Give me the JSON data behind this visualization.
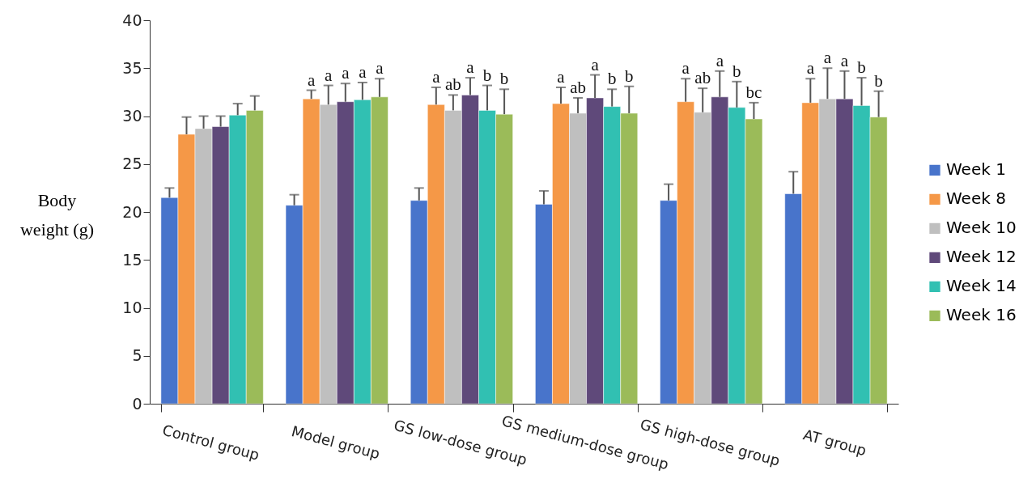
{
  "chart_data": {
    "type": "bar",
    "ylabel": "Body weight (g)",
    "categories": [
      "Control group",
      "Model group",
      "GS low-dose group",
      "GS medium-dose group",
      "GS high-dose group",
      "AT group"
    ],
    "ylim": [
      0,
      40
    ],
    "yticks": [
      0,
      5,
      10,
      15,
      20,
      25,
      30,
      35,
      40
    ],
    "grid": false,
    "legend": "right",
    "series": [
      {
        "name": "Week 1",
        "color": "#4874cb",
        "values": [
          21.5,
          20.7,
          21.2,
          20.8,
          21.2,
          21.9
        ],
        "errors": [
          1.0,
          1.1,
          1.3,
          1.4,
          1.7,
          2.3
        ],
        "value_labels": [
          null,
          null,
          null,
          null,
          null,
          null
        ]
      },
      {
        "name": "Week 8",
        "color": "#f59847",
        "values": [
          28.1,
          31.8,
          31.2,
          31.3,
          31.5,
          31.4
        ],
        "errors": [
          1.8,
          0.9,
          1.8,
          1.7,
          2.4,
          2.5
        ],
        "value_labels": [
          null,
          "a",
          "a",
          "a",
          "a",
          "a"
        ]
      },
      {
        "name": "Week 10",
        "color": "#bfbfbf",
        "values": [
          28.7,
          31.2,
          30.6,
          30.3,
          30.4,
          31.8
        ],
        "errors": [
          1.3,
          2.0,
          1.6,
          1.6,
          2.5,
          3.2
        ],
        "value_labels": [
          null,
          "a",
          "ab",
          "ab",
          "ab",
          "a"
        ]
      },
      {
        "name": "Week 12",
        "color": "#5f497a",
        "values": [
          28.9,
          31.5,
          32.2,
          31.9,
          32.0,
          31.8
        ],
        "errors": [
          1.1,
          1.9,
          1.8,
          2.4,
          2.7,
          2.9
        ],
        "value_labels": [
          null,
          "a",
          "a",
          "a",
          "a",
          "a"
        ]
      },
      {
        "name": "Week 14",
        "color": "#31c0b2",
        "values": [
          30.1,
          31.7,
          30.6,
          31.0,
          30.9,
          31.1
        ],
        "errors": [
          1.2,
          1.8,
          2.6,
          1.8,
          2.7,
          2.9
        ],
        "value_labels": [
          null,
          "a",
          "b",
          "b",
          "b",
          "b"
        ]
      },
      {
        "name": "Week 16",
        "color": "#9bbb59",
        "values": [
          30.6,
          32.0,
          30.2,
          30.3,
          29.7,
          29.9
        ],
        "errors": [
          1.5,
          1.9,
          2.6,
          2.8,
          1.7,
          2.7
        ],
        "value_labels": [
          null,
          "a",
          "b",
          "b",
          "bc",
          "b"
        ]
      }
    ]
  }
}
